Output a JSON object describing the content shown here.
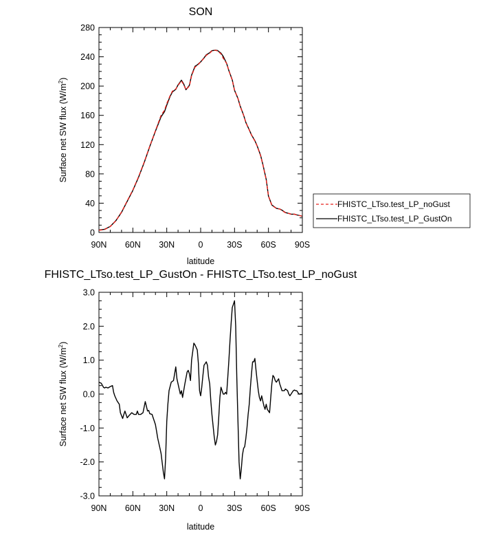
{
  "chart_data": [
    {
      "type": "line",
      "title": "SON",
      "xlabel": "latitude",
      "ylabel": "Surface net SW flux (W/m",
      "ylabel_sup": "2",
      "ylabel_close": ")",
      "xlim": [
        90,
        -90
      ],
      "ylim": [
        0,
        280
      ],
      "xticks": [
        {
          "value": 90,
          "label": "90N"
        },
        {
          "value": 60,
          "label": "60N"
        },
        {
          "value": 30,
          "label": "30N"
        },
        {
          "value": 0,
          "label": "0"
        },
        {
          "value": -30,
          "label": "30S"
        },
        {
          "value": -60,
          "label": "60S"
        },
        {
          "value": -90,
          "label": "90S"
        }
      ],
      "yticks": [
        {
          "value": 0,
          "label": "0"
        },
        {
          "value": 40,
          "label": "40"
        },
        {
          "value": 80,
          "label": "80"
        },
        {
          "value": 120,
          "label": "120"
        },
        {
          "value": 160,
          "label": "160"
        },
        {
          "value": 200,
          "label": "200"
        },
        {
          "value": 240,
          "label": "240"
        },
        {
          "value": 280,
          "label": "280"
        }
      ],
      "legend_position": "right",
      "series": [
        {
          "name": "FHISTC_LTso.test_LP_noGust",
          "color": "#e8221c",
          "dashed": true,
          "x": [
            90,
            85,
            80,
            75,
            70,
            65,
            60,
            55,
            50,
            45,
            40,
            35,
            32,
            30,
            27,
            25,
            22,
            20,
            17,
            15,
            13,
            10,
            8,
            5,
            3,
            0,
            -3,
            -5,
            -8,
            -10,
            -13,
            -15,
            -18,
            -20,
            -23,
            -25,
            -28,
            -30,
            -33,
            -35,
            -38,
            -40,
            -43,
            -45,
            -48,
            -50,
            -53,
            -55,
            -58,
            -60,
            -63,
            -65,
            -67,
            -70,
            -72,
            -75,
            -78,
            -80,
            -83,
            -85,
            -88,
            -90
          ],
          "y": [
            3,
            4,
            8,
            16,
            28,
            43,
            58,
            76,
            96,
            118,
            139,
            160,
            167,
            176,
            187,
            193,
            196,
            201,
            207,
            202,
            195,
            200,
            214,
            226,
            228,
            233,
            238,
            242,
            245,
            248,
            249,
            248,
            244,
            238,
            231,
            221,
            208,
            194,
            183,
            172,
            160,
            150,
            140,
            133,
            125,
            118,
            105,
            93,
            72,
            50,
            37,
            35,
            33,
            32,
            30,
            27,
            26,
            25,
            25,
            24,
            23,
            22
          ]
        },
        {
          "name": "FHISTC_LTso.test_LP_GustOn",
          "color": "#000000",
          "dashed": false,
          "x": [
            90,
            85,
            80,
            75,
            70,
            65,
            60,
            55,
            50,
            45,
            40,
            35,
            32,
            30,
            27,
            25,
            22,
            20,
            17,
            15,
            13,
            10,
            8,
            5,
            3,
            0,
            -3,
            -5,
            -8,
            -10,
            -13,
            -15,
            -18,
            -20,
            -23,
            -25,
            -28,
            -30,
            -33,
            -35,
            -38,
            -40,
            -43,
            -45,
            -48,
            -50,
            -53,
            -55,
            -58,
            -60,
            -63,
            -65,
            -67,
            -70,
            -72,
            -75,
            -78,
            -80,
            -83,
            -85,
            -88,
            -90
          ],
          "y": [
            3.3,
            4.3,
            8.2,
            16.2,
            27.5,
            42.5,
            57.4,
            75.4,
            95.4,
            117.5,
            138.4,
            158,
            165,
            174,
            186,
            192,
            195.5,
            201.5,
            208,
            203,
            195,
            201,
            215,
            227,
            229,
            233,
            238.5,
            242.7,
            245.6,
            248.3,
            249,
            248.5,
            245,
            240.5,
            231,
            221,
            208.5,
            194.2,
            183,
            172.5,
            160.3,
            150.2,
            140.3,
            133.2,
            125.4,
            118.4,
            105.5,
            93.5,
            72.6,
            49.5,
            37.5,
            35.3,
            33,
            32,
            30.4,
            27.2,
            26,
            25,
            25,
            24,
            23,
            22
          ]
        }
      ]
    },
    {
      "type": "line",
      "title": "FHISTC_LTso.test_LP_GustOn - FHISTC_LTso.test_LP_noGust",
      "xlabel": "latitude",
      "ylabel": "Surface net SW flux (W/m",
      "ylabel_sup": "2",
      "ylabel_close": ")",
      "xlim": [
        90,
        -90
      ],
      "ylim": [
        -3.0,
        3.0
      ],
      "xticks": [
        {
          "value": 90,
          "label": "90N"
        },
        {
          "value": 60,
          "label": "60N"
        },
        {
          "value": 30,
          "label": "30N"
        },
        {
          "value": 0,
          "label": "0"
        },
        {
          "value": -30,
          "label": "30S"
        },
        {
          "value": -60,
          "label": "60S"
        },
        {
          "value": -90,
          "label": "90S"
        }
      ],
      "yticks": [
        {
          "value": -3.0,
          "label": "-3.0"
        },
        {
          "value": -2.0,
          "label": "-2.0"
        },
        {
          "value": -1.0,
          "label": "-1.0"
        },
        {
          "value": 0.0,
          "label": "0.0"
        },
        {
          "value": 1.0,
          "label": "1.0"
        },
        {
          "value": 2.0,
          "label": "2.0"
        },
        {
          "value": 3.0,
          "label": "3.0"
        }
      ],
      "series": [
        {
          "color": "#000000",
          "dashed": false,
          "x": [
            90,
            88,
            86,
            85,
            84,
            82,
            80,
            78,
            77,
            76,
            74,
            72,
            71,
            69,
            68,
            67,
            65,
            63,
            61,
            59,
            57,
            56,
            55,
            53,
            51,
            49,
            47,
            46,
            45,
            43,
            42,
            41,
            40,
            39,
            38,
            36,
            35,
            33,
            32,
            31,
            30,
            29,
            28,
            26,
            24,
            22,
            21,
            20,
            18,
            17,
            16,
            14,
            12,
            11,
            10,
            9,
            8,
            6,
            5,
            3,
            2,
            1,
            0,
            -1,
            -2,
            -3,
            -4,
            -5,
            -6,
            -7,
            -8,
            -9,
            -10,
            -12,
            -13,
            -14,
            -15,
            -16,
            -17,
            -18,
            -19,
            -20,
            -21,
            -22,
            -23,
            -24,
            -25,
            -26,
            -27,
            -28,
            -29,
            -30,
            -31,
            -32,
            -33,
            -34,
            -35,
            -36,
            -37,
            -38,
            -39,
            -40,
            -41,
            -42,
            -43,
            -44,
            -45,
            -46,
            -47,
            -48,
            -49,
            -50,
            -51,
            -52,
            -53,
            -54,
            -55,
            -56,
            -57,
            -58,
            -59,
            -60,
            -61,
            -62,
            -63,
            -64,
            -65,
            -66,
            -67,
            -68,
            -69,
            -70,
            -71,
            -72,
            -73,
            -74,
            -75,
            -77,
            -78,
            -79,
            -80,
            -81,
            -82,
            -83,
            -84,
            -85,
            -86,
            -87,
            -88,
            -89,
            -90
          ],
          "y": [
            0.35,
            0.32,
            0.2,
            0.18,
            0.2,
            0.18,
            0.22,
            0.25,
            0.05,
            -0.05,
            -0.2,
            -0.3,
            -0.55,
            -0.72,
            -0.6,
            -0.5,
            -0.7,
            -0.62,
            -0.55,
            -0.6,
            -0.6,
            -0.5,
            -0.6,
            -0.6,
            -0.55,
            -0.22,
            -0.5,
            -0.48,
            -0.58,
            -0.6,
            -0.7,
            -0.8,
            -0.9,
            -1.1,
            -1.3,
            -1.6,
            -1.75,
            -2.3,
            -2.5,
            -1.9,
            -0.8,
            -0.3,
            0.1,
            0.35,
            0.4,
            0.8,
            0.45,
            0.3,
            0.0,
            0.1,
            -0.1,
            0.3,
            0.65,
            0.7,
            0.6,
            0.4,
            1.0,
            1.5,
            1.45,
            1.3,
            0.9,
            0.1,
            -0.05,
            0.2,
            0.55,
            0.85,
            0.9,
            0.95,
            0.85,
            0.5,
            0.3,
            -0.2,
            -0.6,
            -1.25,
            -1.5,
            -1.4,
            -1.2,
            -0.7,
            -0.1,
            0.2,
            0.1,
            0.0,
            0.0,
            0.05,
            0.0,
            0.5,
            1.0,
            1.6,
            2.1,
            2.55,
            2.65,
            2.75,
            2.0,
            0.5,
            -0.8,
            -2.0,
            -2.5,
            -2.2,
            -1.8,
            -1.6,
            -1.55,
            -1.3,
            -1.0,
            -0.6,
            -0.3,
            0.2,
            0.6,
            0.95,
            0.95,
            1.05,
            0.7,
            0.4,
            0.1,
            -0.1,
            -0.2,
            -0.05,
            -0.2,
            -0.35,
            -0.45,
            -0.3,
            -0.45,
            -0.5,
            -0.55,
            -0.1,
            0.3,
            0.55,
            0.5,
            0.4,
            0.35,
            0.4,
            0.45,
            0.3,
            0.2,
            0.1,
            0.1,
            0.1,
            0.15,
            0.1,
            0.0,
            -0.05,
            0.0,
            0.05,
            0.1,
            0.12,
            0.1,
            0.1,
            0.05,
            0.0,
            0.0,
            0.02,
            0.0
          ]
        }
      ]
    }
  ]
}
